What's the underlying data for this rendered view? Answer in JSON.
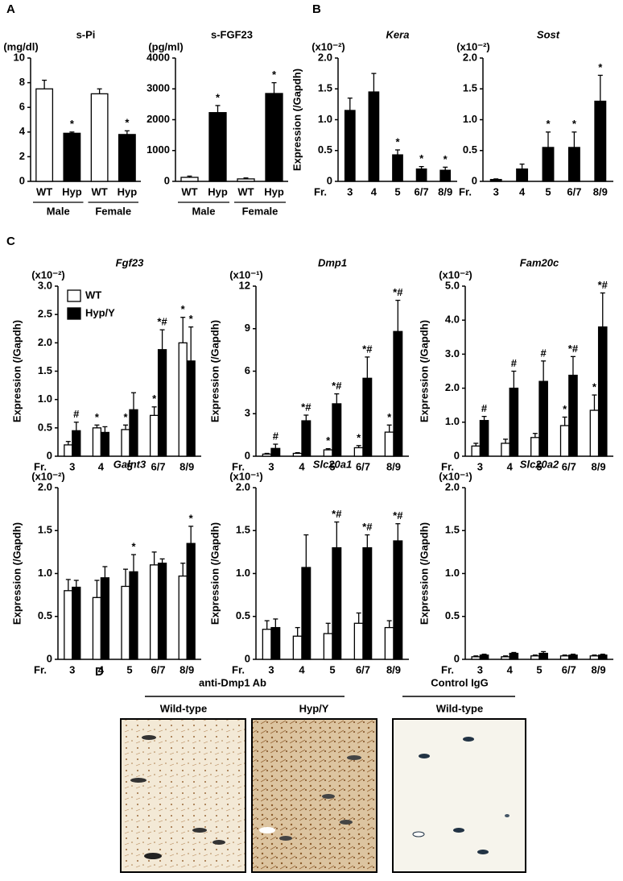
{
  "panel_labels": [
    "A",
    "B",
    "C",
    "D"
  ],
  "chart_data": [
    {
      "type": "bar",
      "title": "s-Pi",
      "unit": "(mg/dl)",
      "categories": [
        "WT",
        "Hyp",
        "WT",
        "Hyp"
      ],
      "groups": [
        "Male",
        "Female"
      ],
      "values": [
        7.5,
        3.9,
        7.1,
        3.8
      ],
      "errors": [
        0.7,
        0.1,
        0.4,
        0.3
      ],
      "markers": [
        null,
        "*",
        null,
        "*"
      ],
      "colors": [
        "#ffffff",
        "#000000",
        "#ffffff",
        "#000000"
      ],
      "ylim": [
        0,
        10
      ],
      "yticks": [
        0,
        2,
        4,
        6,
        8,
        10
      ]
    },
    {
      "type": "bar",
      "title": "s-FGF23",
      "unit": "(pg/ml)",
      "categories": [
        "WT",
        "Hyp",
        "WT",
        "Hyp"
      ],
      "groups": [
        "Male",
        "Female"
      ],
      "values": [
        130,
        2230,
        80,
        2850
      ],
      "errors": [
        40,
        230,
        30,
        350
      ],
      "markers": [
        null,
        "*",
        null,
        "*"
      ],
      "colors": [
        "#ffffff",
        "#000000",
        "#ffffff",
        "#000000"
      ],
      "ylim": [
        0,
        4000
      ],
      "yticks": [
        0,
        1000,
        2000,
        3000,
        4000
      ]
    },
    {
      "type": "bar",
      "title": "Kera",
      "italic_title": true,
      "unit": "(x10⁻²)",
      "ylabel": "Expression (/Gapdh)",
      "xlabel": "Fr.",
      "categories": [
        "3",
        "4",
        "5",
        "6/7",
        "8/9"
      ],
      "values": [
        1.15,
        1.45,
        0.43,
        0.2,
        0.18
      ],
      "errors": [
        0.2,
        0.3,
        0.08,
        0.04,
        0.05
      ],
      "markers": [
        null,
        null,
        "*",
        "*",
        "*"
      ],
      "color": "#000000",
      "ylim": [
        0,
        2
      ],
      "yticks": [
        0,
        0.5,
        {
          "value": 1,
          "label": "1.0"
        },
        1.5,
        {
          "value": 2,
          "label": "2.0"
        }
      ]
    },
    {
      "type": "bar",
      "title": "Sost",
      "italic_title": true,
      "unit": "(x10⁻²)",
      "xlabel": "Fr.",
      "categories": [
        "3",
        "4",
        "5",
        "6/7",
        "8/9"
      ],
      "values": [
        0.03,
        0.2,
        0.55,
        0.55,
        1.3
      ],
      "errors": [
        0.01,
        0.08,
        0.25,
        0.25,
        0.42
      ],
      "markers": [
        null,
        null,
        "*",
        "*",
        "*"
      ],
      "color": "#000000",
      "ylim": [
        0,
        2
      ],
      "yticks": [
        0,
        0.5,
        {
          "value": 1,
          "label": "1.0"
        },
        1.5,
        {
          "value": 2,
          "label": "2.0"
        }
      ]
    },
    {
      "type": "bar",
      "title": "Fgf23",
      "italic_title": true,
      "unit": "(x10⁻²)",
      "ylabel": "Expression (/Gapdh)",
      "xlabel": "Fr.",
      "categories": [
        "3",
        "4",
        "5",
        "6/7",
        "8/9"
      ],
      "legend": "upper left",
      "series": [
        {
          "name": "WT",
          "color": "#ffffff",
          "values": [
            0.2,
            0.5,
            0.47,
            0.72,
            2.0
          ],
          "errors": [
            0.06,
            0.05,
            0.08,
            0.15,
            0.45
          ],
          "markers": [
            null,
            "*",
            "*",
            "*",
            "*"
          ]
        },
        {
          "name": "Hyp/Y",
          "color": "#000000",
          "values": [
            0.45,
            0.42,
            0.82,
            1.88,
            1.68
          ],
          "errors": [
            0.15,
            0.1,
            0.3,
            0.35,
            0.6
          ],
          "markers": [
            "#",
            null,
            null,
            "*#",
            "*"
          ]
        }
      ],
      "ylim": [
        0,
        3
      ],
      "yticks": [
        0,
        0.5,
        {
          "value": 1,
          "label": "1.0"
        },
        1.5,
        {
          "value": 2,
          "label": "2.0"
        },
        2.5,
        {
          "value": 3,
          "label": "3.0"
        }
      ]
    },
    {
      "type": "bar",
      "title": "Dmp1",
      "italic_title": true,
      "unit": "(x10⁻¹)",
      "ylabel": "Expression (/Gapdh)",
      "xlabel": "Fr.",
      "categories": [
        "3",
        "4",
        "5",
        "6/7",
        "8/9"
      ],
      "series": [
        {
          "color": "#ffffff",
          "values": [
            0.15,
            0.2,
            0.45,
            0.6,
            1.7
          ],
          "errors": [
            0.05,
            0.05,
            0.08,
            0.15,
            0.5
          ],
          "markers": [
            null,
            null,
            "*",
            "*",
            "*"
          ]
        },
        {
          "color": "#000000",
          "values": [
            0.55,
            2.5,
            3.7,
            5.5,
            8.8
          ],
          "errors": [
            0.3,
            0.4,
            0.7,
            1.5,
            2.2
          ],
          "markers": [
            "#",
            "*#",
            "*#",
            "*#",
            "*#"
          ]
        }
      ],
      "ylim": [
        0,
        12
      ],
      "yticks": [
        0,
        3,
        6,
        9,
        12
      ]
    },
    {
      "type": "bar",
      "title": "Fam20c",
      "italic_title": true,
      "unit": "(x10⁻²)",
      "ylabel": "Expression (/Gapdh)",
      "xlabel": "Fr.",
      "categories": [
        "3",
        "4",
        "5",
        "6/7",
        "8/9"
      ],
      "series": [
        {
          "color": "#ffffff",
          "values": [
            0.3,
            0.38,
            0.55,
            0.9,
            1.35
          ],
          "errors": [
            0.08,
            0.12,
            0.12,
            0.25,
            0.45
          ],
          "markers": [
            null,
            null,
            null,
            "*",
            "*"
          ]
        },
        {
          "color": "#000000",
          "values": [
            1.05,
            2.0,
            2.2,
            2.38,
            3.8
          ],
          "errors": [
            0.12,
            0.5,
            0.6,
            0.55,
            1.0
          ],
          "markers": [
            "#",
            "#",
            "#",
            "*#",
            "*#"
          ]
        }
      ],
      "ylim": [
        0,
        5
      ],
      "yticks": [
        0,
        {
          "value": 1,
          "label": "1.0"
        },
        {
          "value": 2,
          "label": "2.0"
        },
        {
          "value": 3,
          "label": "3.0"
        },
        {
          "value": 4,
          "label": "4.0"
        },
        {
          "value": 5,
          "label": "5.0"
        }
      ]
    },
    {
      "type": "bar",
      "title": "Galnt3",
      "italic_title": true,
      "unit": "(x10⁻²)",
      "ylabel": "Expression (/Gapdh)",
      "xlabel": "Fr.",
      "categories": [
        "3",
        "4",
        "5",
        "6/7",
        "8/9"
      ],
      "series": [
        {
          "color": "#ffffff",
          "values": [
            0.8,
            0.72,
            0.85,
            1.1,
            0.97
          ],
          "errors": [
            0.13,
            0.2,
            0.2,
            0.15,
            0.15
          ]
        },
        {
          "color": "#000000",
          "values": [
            0.84,
            0.95,
            1.02,
            1.12,
            1.35
          ],
          "errors": [
            0.08,
            0.13,
            0.2,
            0.05,
            0.2
          ],
          "markers": [
            null,
            null,
            "*",
            null,
            "*"
          ]
        }
      ],
      "ylim": [
        0,
        2
      ],
      "yticks": [
        0,
        0.5,
        {
          "value": 1,
          "label": "1.0"
        },
        1.5,
        {
          "value": 2,
          "label": "2.0"
        }
      ]
    },
    {
      "type": "bar",
      "title": "Slc20a1",
      "italic_title": true,
      "unit": "(x10⁻¹)",
      "ylabel": "Expression (/Gapdh)",
      "xlabel": "Fr.",
      "categories": [
        "3",
        "4",
        "5",
        "6/7",
        "8/9"
      ],
      "series": [
        {
          "color": "#ffffff",
          "values": [
            0.35,
            0.27,
            0.3,
            0.42,
            0.37
          ],
          "errors": [
            0.1,
            0.1,
            0.12,
            0.12,
            0.08
          ]
        },
        {
          "color": "#000000",
          "values": [
            0.37,
            1.07,
            1.3,
            1.3,
            1.38
          ],
          "errors": [
            0.1,
            0.38,
            0.3,
            0.15,
            0.2
          ],
          "markers": [
            null,
            null,
            "*#",
            "*#",
            "*#"
          ]
        }
      ],
      "ylim": [
        0,
        2
      ],
      "yticks": [
        0,
        0.5,
        {
          "value": 1,
          "label": "1.0"
        },
        1.5,
        {
          "value": 2,
          "label": "2.0"
        }
      ]
    },
    {
      "type": "bar",
      "title": "Slc20a2",
      "italic_title": true,
      "unit": "(x10⁻¹)",
      "ylabel": "Expression (/Gapdh)",
      "xlabel": "Fr.",
      "categories": [
        "3",
        "4",
        "5",
        "6/7",
        "8/9"
      ],
      "series": [
        {
          "color": "#ffffff",
          "values": [
            0.03,
            0.03,
            0.04,
            0.04,
            0.04
          ],
          "errors": [
            0.01,
            0.01,
            0.01,
            0.01,
            0.01
          ]
        },
        {
          "color": "#000000",
          "values": [
            0.05,
            0.07,
            0.07,
            0.05,
            0.05
          ],
          "errors": [
            0.01,
            0.01,
            0.02,
            0.01,
            0.01
          ]
        }
      ],
      "ylim": [
        0,
        2
      ],
      "yticks": [
        0,
        0.5,
        {
          "value": 1,
          "label": "1.0"
        },
        1.5,
        {
          "value": 2,
          "label": "2.0"
        }
      ]
    }
  ],
  "micrographs": {
    "groups": [
      {
        "label": "anti-Dmp1 Ab",
        "images": [
          "Wild-type",
          "Hyp/Y"
        ]
      },
      {
        "label": "Control IgG",
        "images": [
          "Wild-type"
        ]
      }
    ]
  }
}
